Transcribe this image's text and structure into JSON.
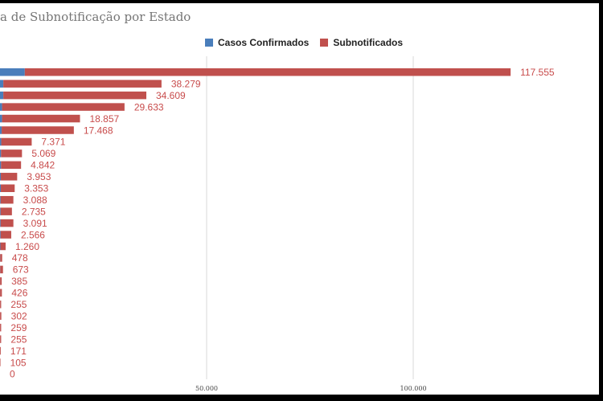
{
  "chart_data": {
    "type": "bar",
    "orientation": "horizontal",
    "stacked": true,
    "title": "a de Subnotificação por Estado",
    "series": [
      {
        "name": "Casos Confirmados",
        "color": "#4a7ebb",
        "values": [
          6000,
          800,
          800,
          500,
          500,
          400,
          300,
          250,
          250,
          200,
          200,
          150,
          150,
          150,
          150,
          100,
          50,
          50,
          30,
          30,
          20,
          20,
          20,
          20,
          10,
          5,
          0
        ]
      },
      {
        "name": "Subnotificados",
        "color": "#c0504d",
        "values": [
          117555,
          38279,
          34609,
          29633,
          18857,
          17468,
          7371,
          5069,
          4842,
          3953,
          3353,
          3088,
          2735,
          3091,
          2566,
          1260,
          478,
          673,
          385,
          426,
          255,
          302,
          259,
          255,
          171,
          105,
          0
        ]
      }
    ],
    "data_labels": [
      "117.555",
      "38.279",
      "34.609",
      "29.633",
      "18.857",
      "17.468",
      "7.371",
      "5.069",
      "4.842",
      "3.953",
      "3.353",
      "3.088",
      "2.735",
      "3.091",
      "2.566",
      "1.260",
      "478",
      "673",
      "385",
      "426",
      "255",
      "302",
      "259",
      "255",
      "171",
      "105",
      "0"
    ],
    "xaxis": {
      "ticks": [
        50000,
        100000
      ],
      "tick_labels": [
        "50.000",
        "100.000"
      ],
      "min": 0
    },
    "grid": true,
    "legend_position": "top"
  }
}
